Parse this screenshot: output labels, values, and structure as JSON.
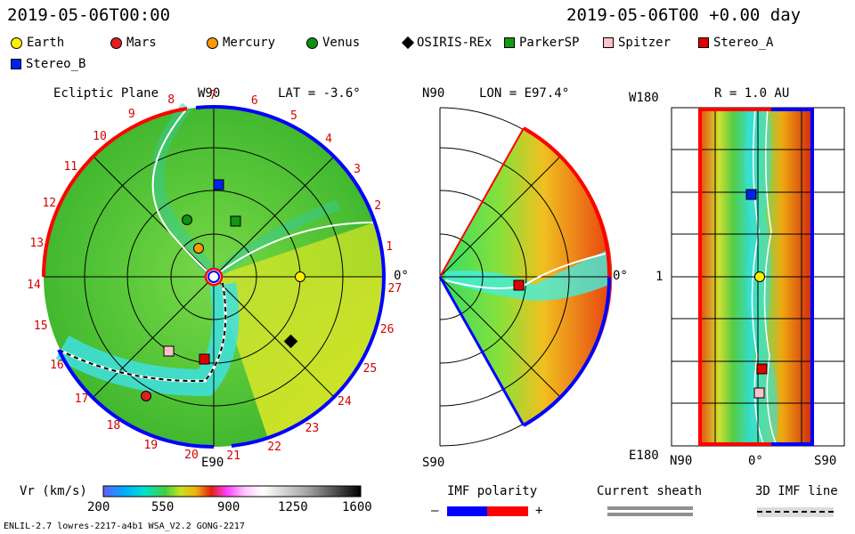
{
  "header": {
    "timestamp_left": "2019-05-06T00:00",
    "timestamp_right": "2019-05-06T00 +0.00 day"
  },
  "legend": [
    {
      "label": "Earth",
      "shape": "circle",
      "color": "#ffee00"
    },
    {
      "label": "Mars",
      "shape": "circle",
      "color": "#e02020"
    },
    {
      "label": "Mercury",
      "shape": "circle",
      "color": "#ff9900"
    },
    {
      "label": "Venus",
      "shape": "circle",
      "color": "#109010"
    },
    {
      "label": "OSIRIS-REx",
      "shape": "diamond",
      "color": "#000000"
    },
    {
      "label": "ParkerSP",
      "shape": "square",
      "color": "#119911"
    },
    {
      "label": "Spitzer",
      "shape": "square",
      "color": "#ffc0c8"
    },
    {
      "label": "Stereo_A",
      "shape": "square",
      "color": "#e00000"
    },
    {
      "label": "Stereo_B",
      "shape": "square",
      "color": "#0022ee"
    }
  ],
  "ecliptic": {
    "title": "Ecliptic Plane",
    "top": "W90",
    "bottom": "E90",
    "lat": "LAT = -3.6°",
    "zero": "0°",
    "carrington": [
      "1",
      "2",
      "3",
      "4",
      "5",
      "6",
      "7",
      "8",
      "9",
      "10",
      "11",
      "12",
      "13",
      "14",
      "15",
      "16",
      "17",
      "18",
      "19",
      "20",
      "21",
      "22",
      "23",
      "24",
      "25",
      "26",
      "27"
    ]
  },
  "meridional": {
    "top": "N90",
    "bottom": "S90",
    "lon": "LON = E97.4°",
    "zero": "0°"
  },
  "radial": {
    "top": "W180",
    "bottom": "E180",
    "r": "R = 1.0 AU",
    "mid": "1",
    "xlabels": [
      "N90",
      "0°",
      "S90"
    ]
  },
  "colorbar": {
    "label": "Vr (km/s)",
    "ticks": [
      "200",
      "550",
      "900",
      "1250",
      "1600"
    ]
  },
  "imf": {
    "title": "IMF polarity",
    "minus": "–",
    "plus": "+",
    "neg_color": "#0000ff",
    "pos_color": "#ff0000"
  },
  "sheath": {
    "title": "Current sheath"
  },
  "imf3d": {
    "title": "3D IMF line"
  },
  "footer": {
    "model": "ENLIL-2.7 lowres-2217-a4b1 WSA_V2.2 GONG-2217"
  }
}
